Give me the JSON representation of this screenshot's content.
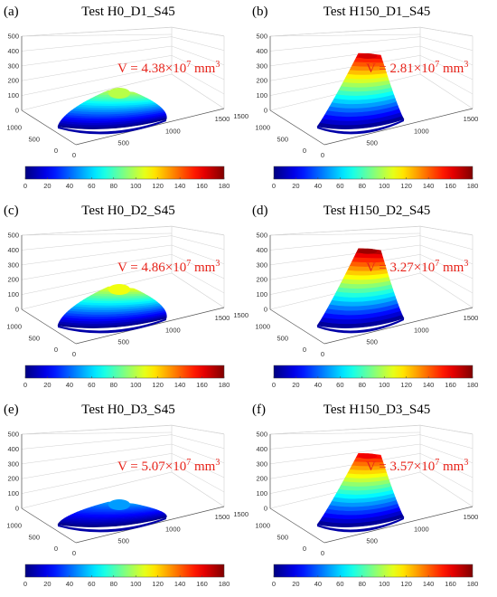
{
  "chart_data": [
    {
      "panel": "(a)",
      "title": "Test H0_D1_S45",
      "type": "surface",
      "volume": {
        "prefix": "V = ",
        "mantissa": "4.38",
        "times10": "×10",
        "exp": "7",
        "unit": " mm",
        "unit_exp": "3"
      },
      "peak": 100,
      "shape": "flat",
      "zlim": [
        0,
        500
      ],
      "xlim": [
        0,
        1500
      ],
      "ylim": [
        0,
        1500
      ],
      "z_ticks": [
        "0",
        "100",
        "200",
        "300",
        "400",
        "500"
      ],
      "x_ticks": [
        "0",
        "500",
        "1000",
        "1500"
      ],
      "y_ticks": [
        "1500",
        "1000",
        "500",
        "0"
      ],
      "colorbar": {
        "range": [
          0,
          180
        ],
        "ticks": [
          "0",
          "20",
          "40",
          "60",
          "80",
          "100",
          "120",
          "140",
          "160",
          "180"
        ]
      }
    },
    {
      "panel": "(b)",
      "title": "Test H150_D1_S45",
      "type": "surface",
      "volume": {
        "prefix": "V = ",
        "mantissa": "2.81",
        "times10": "×10",
        "exp": "7",
        "unit": " mm",
        "unit_exp": "3"
      },
      "peak": 165,
      "shape": "peaked",
      "zlim": [
        0,
        500
      ],
      "xlim": [
        0,
        1500
      ],
      "ylim": [
        0,
        1500
      ],
      "z_ticks": [
        "0",
        "100",
        "200",
        "300",
        "400",
        "500"
      ],
      "x_ticks": [
        "0",
        "500",
        "1000",
        "1500"
      ],
      "y_ticks": [
        "1500",
        "1000",
        "500",
        "0"
      ],
      "colorbar": {
        "range": [
          0,
          180
        ],
        "ticks": [
          "0",
          "20",
          "40",
          "60",
          "80",
          "100",
          "120",
          "140",
          "160",
          "180"
        ]
      }
    },
    {
      "panel": "(c)",
      "title": "Test H0_D2_S45",
      "type": "surface",
      "volume": {
        "prefix": "V = ",
        "mantissa": "4.86",
        "times10": "×10",
        "exp": "7",
        "unit": " mm",
        "unit_exp": "3"
      },
      "peak": 110,
      "shape": "flat",
      "zlim": [
        0,
        500
      ],
      "xlim": [
        0,
        1500
      ],
      "ylim": [
        0,
        1500
      ],
      "z_ticks": [
        "0",
        "100",
        "200",
        "300",
        "400",
        "500"
      ],
      "x_ticks": [
        "0",
        "500",
        "1000",
        "1500"
      ],
      "y_ticks": [
        "1500",
        "1000",
        "500",
        "0"
      ],
      "colorbar": {
        "range": [
          0,
          180
        ],
        "ticks": [
          "0",
          "20",
          "40",
          "60",
          "80",
          "100",
          "120",
          "140",
          "160",
          "180"
        ]
      }
    },
    {
      "panel": "(d)",
      "title": "Test H150_D2_S45",
      "type": "surface",
      "volume": {
        "prefix": "V = ",
        "mantissa": "3.27",
        "times10": "×10",
        "exp": "7",
        "unit": " mm",
        "unit_exp": "3"
      },
      "peak": 175,
      "shape": "peaked",
      "zlim": [
        0,
        500
      ],
      "xlim": [
        0,
        1500
      ],
      "ylim": [
        0,
        1500
      ],
      "z_ticks": [
        "0",
        "100",
        "200",
        "300",
        "400",
        "500"
      ],
      "x_ticks": [
        "0",
        "500",
        "1000",
        "1500"
      ],
      "y_ticks": [
        "1500",
        "1000",
        "500",
        "0"
      ],
      "colorbar": {
        "range": [
          0,
          180
        ],
        "ticks": [
          "0",
          "20",
          "40",
          "60",
          "80",
          "100",
          "120",
          "140",
          "160",
          "180"
        ]
      }
    },
    {
      "panel": "(e)",
      "title": "Test H0_D3_S45",
      "type": "surface",
      "volume": {
        "prefix": "V = ",
        "mantissa": "5.07",
        "times10": "×10",
        "exp": "7",
        "unit": " mm",
        "unit_exp": "3"
      },
      "peak": 50,
      "shape": "flat",
      "zlim": [
        0,
        500
      ],
      "xlim": [
        0,
        1500
      ],
      "ylim": [
        0,
        1500
      ],
      "z_ticks": [
        "0",
        "100",
        "200",
        "300",
        "400",
        "500"
      ],
      "x_ticks": [
        "0",
        "500",
        "1000",
        "1500"
      ],
      "y_ticks": [
        "1500",
        "1000",
        "500",
        "0"
      ],
      "colorbar": {
        "range": [
          0,
          180
        ],
        "ticks": [
          "0",
          "20",
          "40",
          "60",
          "80",
          "100",
          "120",
          "140",
          "160",
          "180"
        ]
      }
    },
    {
      "panel": "(f)",
      "title": "Test H150_D3_S45",
      "type": "surface",
      "volume": {
        "prefix": "V = ",
        "mantissa": "3.57",
        "times10": "×10",
        "exp": "7",
        "unit": " mm",
        "unit_exp": "3"
      },
      "peak": 160,
      "shape": "peaked",
      "zlim": [
        0,
        500
      ],
      "xlim": [
        0,
        1500
      ],
      "ylim": [
        0,
        1500
      ],
      "z_ticks": [
        "0",
        "100",
        "200",
        "300",
        "400",
        "500"
      ],
      "x_ticks": [
        "0",
        "500",
        "1000",
        "1500"
      ],
      "y_ticks": [
        "1500",
        "1000",
        "500",
        "0"
      ],
      "colorbar": {
        "range": [
          0,
          180
        ],
        "ticks": [
          "0",
          "20",
          "40",
          "60",
          "80",
          "100",
          "120",
          "140",
          "160",
          "180"
        ]
      }
    }
  ],
  "colormap": "jet",
  "colors": {
    "volume_label": "#e8231a",
    "grid": "#d0d0d0",
    "axis": "#555555"
  }
}
